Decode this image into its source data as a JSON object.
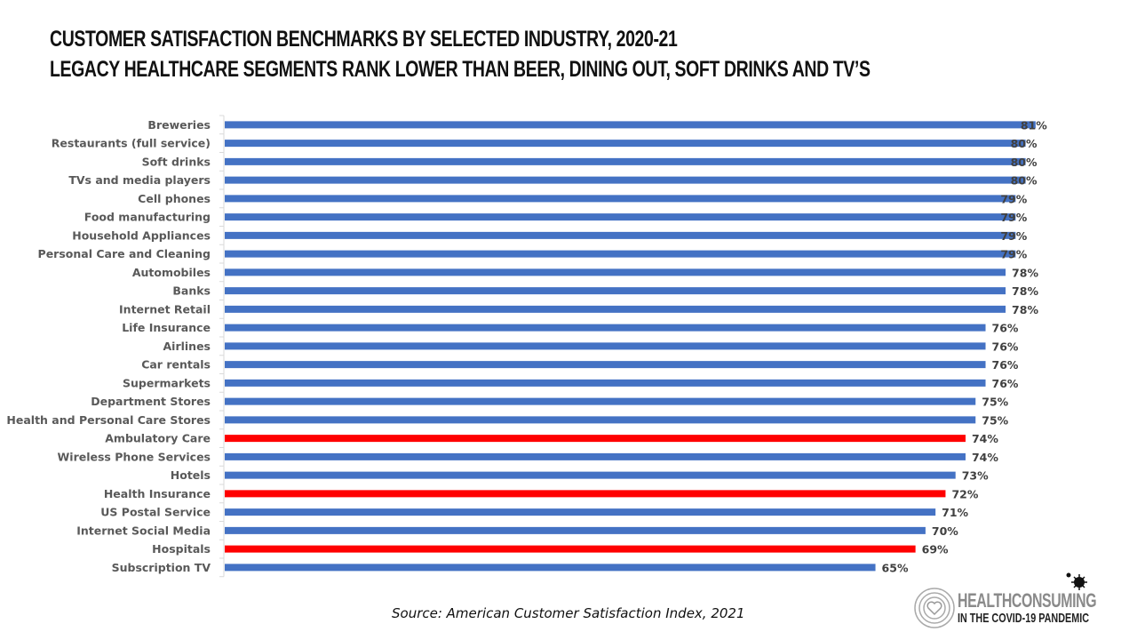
{
  "header": {
    "title_line1": "CUSTOMER SATISFACTION BENCHMARKS BY SELECTED INDUSTRY, 2020-21",
    "title_line2": "LEGACY HEALTHCARE SEGMENTS RANK LOWER THAN BEER, DINING OUT, SOFT DRINKS AND TV’S"
  },
  "source": "Source: American Customer Satisfaction Index, 2021",
  "logo": {
    "line1": "HEALTHCONSUMING",
    "line2": "IN THE COVID-19 PANDEMIC",
    "icon": "heart-icon",
    "badge_icon": "virus-icon"
  },
  "colors": {
    "default_bar": "#4472C4",
    "highlight_bar": "#FF0000"
  },
  "chart_data": {
    "type": "bar",
    "orientation": "horizontal",
    "title": "CUSTOMER SATISFACTION BENCHMARKS BY SELECTED INDUSTRY, 2020-21",
    "subtitle": "LEGACY HEALTHCARE SEGMENTS RANK LOWER THAN BEER, DINING OUT, SOFT DRINKS AND TV’S",
    "xlabel": "",
    "ylabel": "",
    "xlim": [
      0,
      81
    ],
    "grid": false,
    "legend": "none",
    "value_format": "percent",
    "categories": [
      "Breweries",
      "Restaurants (full service)",
      "Soft drinks",
      "TVs and media players",
      "Cell phones",
      "Food manufacturing",
      "Household Appliances",
      "Personal Care and Cleaning",
      "Automobiles",
      "Banks",
      "Internet Retail",
      "Life Insurance",
      "Airlines",
      "Car rentals",
      "Supermarkets",
      "Department Stores",
      "Health and Personal Care Stores",
      "Ambulatory Care",
      "Wireless Phone Services",
      "Hotels",
      "Health Insurance",
      "US Postal Service",
      "Internet Social Media",
      "Hospitals",
      "Subscription TV"
    ],
    "values": [
      81,
      80,
      80,
      80,
      79,
      79,
      79,
      79,
      78,
      78,
      78,
      76,
      76,
      76,
      76,
      75,
      75,
      74,
      74,
      73,
      72,
      71,
      70,
      69,
      65
    ],
    "highlighted": [
      "Ambulatory Care",
      "Health Insurance",
      "Hospitals"
    ]
  }
}
